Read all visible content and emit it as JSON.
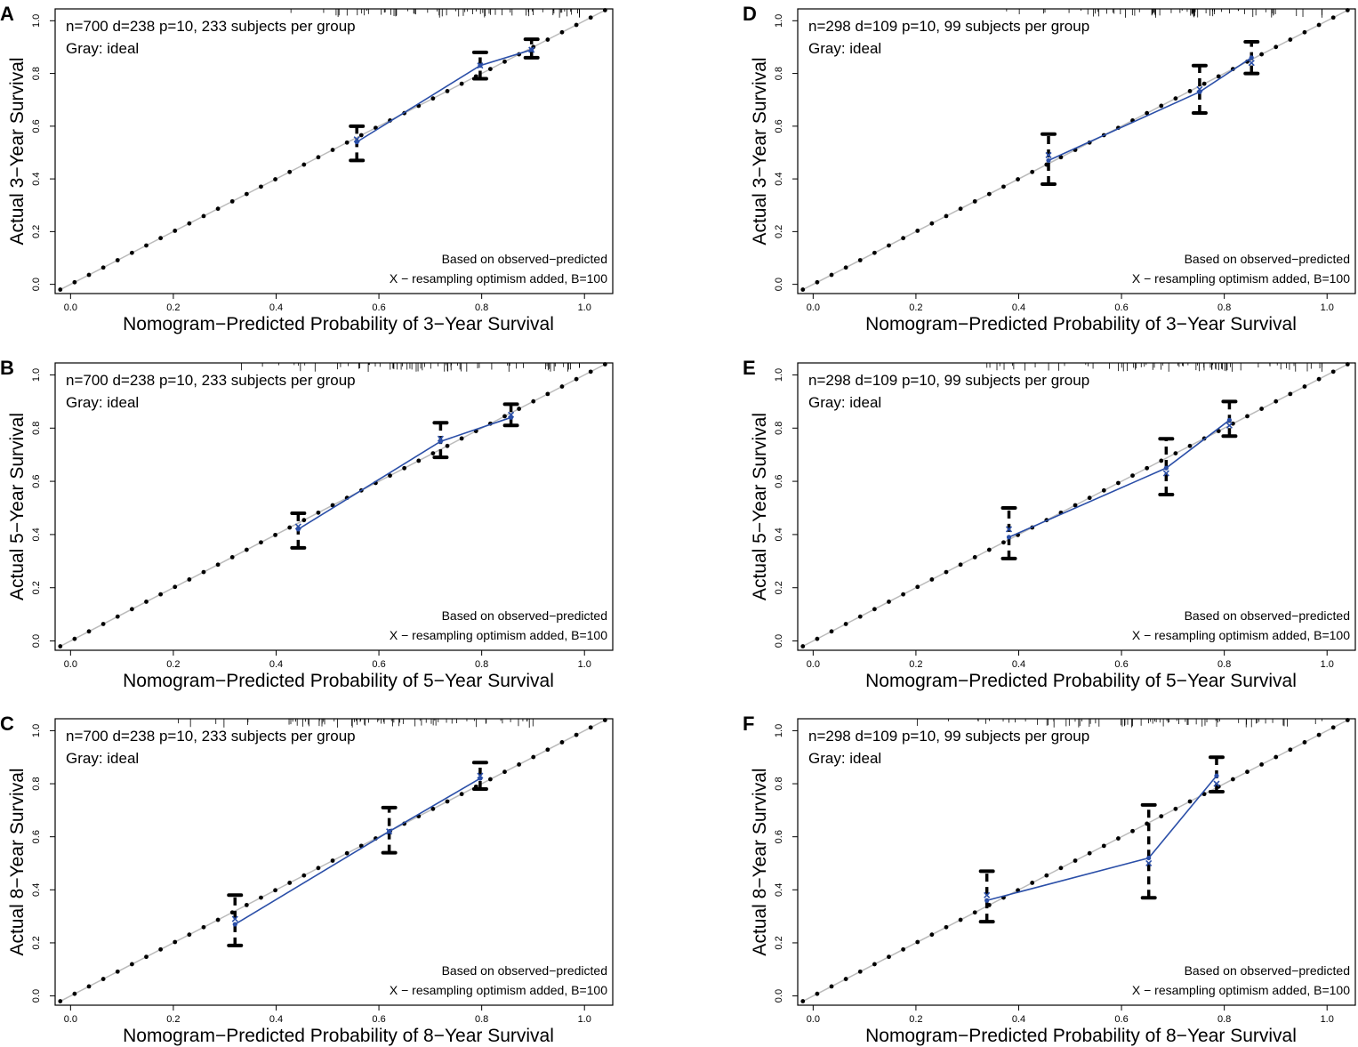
{
  "figure": {
    "ideal_label": "Gray: ideal",
    "note_line1": "Based on observed−predicted",
    "note_line2": "X − resampling optimism added, B=100",
    "x_ticks": [
      "0.0",
      "0.2",
      "0.4",
      "0.6",
      "0.8",
      "1.0"
    ],
    "y_ticks": [
      "0.0",
      "0.2",
      "0.4",
      "0.6",
      "0.8",
      "1.0"
    ],
    "colors": {
      "calibration_line": "#2b4fa8",
      "ideal_line": "#bbbbbb",
      "marks": "#000000"
    }
  },
  "chart_data": [
    {
      "panel": "A",
      "type": "line",
      "header": "n=700 d=238 p=10, 233 subjects per group",
      "xlabel": "Nomogram−Predicted Probability of 3−Year Survival",
      "ylabel": "Actual 3−Year Survival",
      "xlim": [
        0,
        1
      ],
      "ylim": [
        0,
        1
      ],
      "series": [
        {
          "name": "observed",
          "x": [
            0.557,
            0.797,
            0.897
          ],
          "y": [
            0.54,
            0.83,
            0.89
          ]
        },
        {
          "name": "optimism-corrected (X)",
          "x": [
            0.557,
            0.797,
            0.897
          ],
          "y": [
            0.55,
            0.83,
            0.89
          ]
        }
      ],
      "ci": [
        {
          "x": 0.557,
          "lo": 0.47,
          "hi": 0.6
        },
        {
          "x": 0.797,
          "lo": 0.78,
          "hi": 0.88
        },
        {
          "x": 0.897,
          "lo": 0.86,
          "hi": 0.93
        }
      ]
    },
    {
      "panel": "B",
      "type": "line",
      "header": "n=700 d=238 p=10, 233 subjects per group",
      "xlabel": "Nomogram−Predicted Probability of 5−Year Survival",
      "ylabel": "Actual 5−Year Survival",
      "xlim": [
        0,
        1
      ],
      "ylim": [
        0,
        1
      ],
      "series": [
        {
          "name": "observed",
          "x": [
            0.443,
            0.72,
            0.857
          ],
          "y": [
            0.42,
            0.75,
            0.84
          ]
        },
        {
          "name": "optimism-corrected (X)",
          "x": [
            0.443,
            0.72,
            0.857
          ],
          "y": [
            0.43,
            0.76,
            0.85
          ]
        }
      ],
      "ci": [
        {
          "x": 0.443,
          "lo": 0.35,
          "hi": 0.48
        },
        {
          "x": 0.72,
          "lo": 0.69,
          "hi": 0.82
        },
        {
          "x": 0.857,
          "lo": 0.81,
          "hi": 0.89
        }
      ]
    },
    {
      "panel": "C",
      "type": "line",
      "header": "n=700 d=238 p=10, 233 subjects per group",
      "xlabel": "Nomogram−Predicted Probability of 8−Year Survival",
      "ylabel": "Actual 8−Year Survival",
      "xlim": [
        0,
        1
      ],
      "ylim": [
        0,
        1
      ],
      "series": [
        {
          "name": "observed",
          "x": [
            0.32,
            0.62,
            0.797
          ],
          "y": [
            0.27,
            0.62,
            0.82
          ]
        },
        {
          "name": "optimism-corrected (X)",
          "x": [
            0.32,
            0.62,
            0.797
          ],
          "y": [
            0.29,
            0.62,
            0.83
          ]
        }
      ],
      "ci": [
        {
          "x": 0.32,
          "lo": 0.19,
          "hi": 0.38
        },
        {
          "x": 0.62,
          "lo": 0.54,
          "hi": 0.71
        },
        {
          "x": 0.797,
          "lo": 0.78,
          "hi": 0.88
        }
      ]
    },
    {
      "panel": "D",
      "type": "line",
      "header": "n=298 d=109 p=10, 99 subjects per group",
      "xlabel": "Nomogram−Predicted Probability of 3−Year Survival",
      "ylabel": "Actual 3−Year Survival",
      "xlim": [
        0,
        1
      ],
      "ylim": [
        0,
        1
      ],
      "series": [
        {
          "name": "observed",
          "x": [
            0.458,
            0.752,
            0.853
          ],
          "y": [
            0.47,
            0.73,
            0.86
          ]
        },
        {
          "name": "optimism-corrected (X)",
          "x": [
            0.458,
            0.752,
            0.853
          ],
          "y": [
            0.49,
            0.74,
            0.84
          ]
        }
      ],
      "ci": [
        {
          "x": 0.458,
          "lo": 0.38,
          "hi": 0.57
        },
        {
          "x": 0.752,
          "lo": 0.65,
          "hi": 0.83
        },
        {
          "x": 0.853,
          "lo": 0.8,
          "hi": 0.92
        }
      ]
    },
    {
      "panel": "E",
      "type": "line",
      "header": "n=298 d=109 p=10, 99 subjects per group",
      "xlabel": "Nomogram−Predicted Probability of 5−Year Survival",
      "ylabel": "Actual 5−Year Survival",
      "xlim": [
        0,
        1
      ],
      "ylim": [
        0,
        1
      ],
      "series": [
        {
          "name": "observed",
          "x": [
            0.381,
            0.687,
            0.81
          ],
          "y": [
            0.39,
            0.65,
            0.83
          ]
        },
        {
          "name": "optimism-corrected (X)",
          "x": [
            0.381,
            0.687,
            0.81
          ],
          "y": [
            0.42,
            0.63,
            0.81
          ]
        }
      ],
      "ci": [
        {
          "x": 0.381,
          "lo": 0.31,
          "hi": 0.5
        },
        {
          "x": 0.687,
          "lo": 0.55,
          "hi": 0.76
        },
        {
          "x": 0.81,
          "lo": 0.77,
          "hi": 0.9
        }
      ]
    },
    {
      "panel": "F",
      "type": "line",
      "header": "n=298 d=109 p=10, 99 subjects per group",
      "xlabel": "Nomogram−Predicted Probability of 8−Year Survival",
      "ylabel": "Actual 8−Year Survival",
      "xlim": [
        0,
        1
      ],
      "ylim": [
        0,
        1
      ],
      "series": [
        {
          "name": "observed",
          "x": [
            0.338,
            0.653,
            0.785
          ],
          "y": [
            0.36,
            0.52,
            0.83
          ]
        },
        {
          "name": "optimism-corrected (X)",
          "x": [
            0.338,
            0.653,
            0.785
          ],
          "y": [
            0.38,
            0.5,
            0.8
          ]
        }
      ],
      "ci": [
        {
          "x": 0.338,
          "lo": 0.28,
          "hi": 0.47
        },
        {
          "x": 0.653,
          "lo": 0.37,
          "hi": 0.72
        },
        {
          "x": 0.785,
          "lo": 0.77,
          "hi": 0.9
        }
      ]
    }
  ]
}
